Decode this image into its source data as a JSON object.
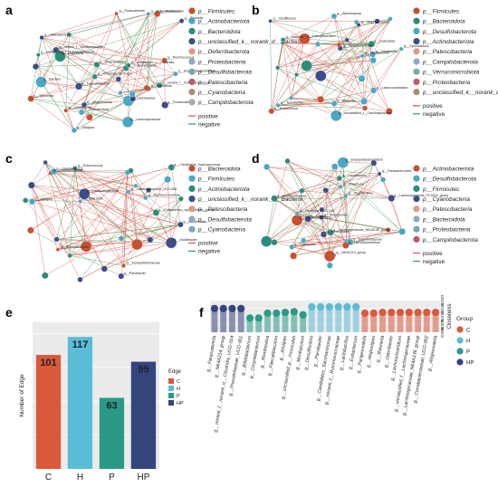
{
  "panels": {
    "a": {
      "letter": "a",
      "legend": [
        {
          "label": "p__Firmicutes",
          "color": "#c8502e"
        },
        {
          "label": "p__Actinobacteriota",
          "color": "#4aa8c4"
        },
        {
          "label": "p__Bacteroidota",
          "color": "#2a8c7c"
        },
        {
          "label": "p__unclassified_k__norank_d__Bacteria",
          "color": "#3b4e8a"
        },
        {
          "label": "p__Deferribacterota",
          "color": "#e09a80"
        },
        {
          "label": "p__Proteobacteria",
          "color": "#8fa8c8"
        },
        {
          "label": "p__Desulfobacterota",
          "color": "#7aa8b0"
        },
        {
          "label": "p__Patescibacteria",
          "color": "#c05a68"
        },
        {
          "label": "p__Cyanobacteria",
          "color": "#a89070"
        },
        {
          "label": "p__Campilobacterota",
          "color": "#aaaaaa"
        }
      ],
      "edges": [
        "positive",
        "negative"
      ],
      "nodes": [
        "g__Helicobacter",
        "g__Erysipelatoclostridium",
        "g__Corynebacterium",
        "g__Muribaculum",
        "g__Alloprevotella",
        "g__Colidextribacter",
        "g__Ruminococcus",
        "g__Desulfovibrio",
        "g__Alistipes",
        "g__Rikenella",
        "g__unclassified_o__Clostridia",
        "g__Lachnospiraceae",
        "g__Faecalibaculum",
        "g__Oscillibacter",
        "g__Lactobacillus",
        "g__Dubosiella",
        "g__Romboutsia",
        "g__Roseburia",
        "g__Tyzzerella",
        "g__Parasutterella",
        "g__Bacillus",
        "g__norank_f__Ruminococcaceae",
        "g__unclassified_f__Lachnospiraceae",
        "g__norank_f__Muribaculaceae",
        "g__Enterorhabdus",
        "g__Clostridia_UCG-014"
      ]
    },
    "b": {
      "letter": "b",
      "legend": [
        {
          "label": "p__Firmicutes",
          "color": "#c8502e"
        },
        {
          "label": "p__Bacteroidota",
          "color": "#2a8c7c"
        },
        {
          "label": "p__Desulfobacterota",
          "color": "#4aa8c4"
        },
        {
          "label": "p__Actinobacteriota",
          "color": "#3b4e8a"
        },
        {
          "label": "p__Patescibacteria",
          "color": "#e09a80"
        },
        {
          "label": "p__Campilobacterota",
          "color": "#8fa8c8"
        },
        {
          "label": "p__Verrucomicrobiota",
          "color": "#7aa8b0"
        },
        {
          "label": "p__Proteobacteria",
          "color": "#c05a68"
        },
        {
          "label": "p__unclassified_k__norank_d__Bacteria",
          "color": "#a89070"
        }
      ],
      "edges": [
        "positive",
        "negative"
      ],
      "nodes": [
        "g__Parabacteroides",
        "g__Alistipes",
        "g__Muribaculum",
        "g__Akkermansia",
        "g__Odoribacter",
        "g__Lachnoclostridium",
        "g__Dubosiella",
        "g__Sporosarcina",
        "g__Staphylococcus",
        "g__Turicibacter",
        "g__Bilophila",
        "g__Faecalibaculum",
        "g__Eubacterium",
        "g__Oscillibacter",
        "g__unclassified_f__Oscillospiraceae"
      ]
    },
    "c": {
      "letter": "c",
      "legend": [
        {
          "label": "p__Bacteroidota",
          "color": "#c8502e"
        },
        {
          "label": "p__Firmicutes",
          "color": "#4aa8c4"
        },
        {
          "label": "p__Actinobacteriota",
          "color": "#2a8c7c"
        },
        {
          "label": "p__unclassified_k__norank_d__Bacteria",
          "color": "#3b4e8a"
        },
        {
          "label": "p__Patescibacteria",
          "color": "#e09a80"
        },
        {
          "label": "p__Desulfobacterota",
          "color": "#8fa8c8"
        },
        {
          "label": "p__Cyanobacteria",
          "color": "#7aa8b0"
        }
      ],
      "edges": [
        "positive",
        "negative"
      ],
      "nodes": [
        "g__Bacteroides",
        "g__Enterococcus",
        "g__Erysipelotrichaceae",
        "g__Peptococcaceae",
        "g__Streptococcus",
        "g__Candidatus_Saccharimonas",
        "g__Lachnospiraceae_UCG-006",
        "g__Parvibacter",
        "g__Alistipes",
        "g__Bifidobacterium",
        "g__UBA1819",
        "g__Oscillibacter",
        "g__Ruminococcaceae",
        "g__Eubacterium_xylanophilum_group",
        "g__Lachnoclostridium"
      ]
    },
    "d": {
      "letter": "d",
      "legend": [
        {
          "label": "p__Actinobacteriota",
          "color": "#c8502e"
        },
        {
          "label": "p__Desulfobacterota",
          "color": "#4aa8c4"
        },
        {
          "label": "p__Firmicutes",
          "color": "#2a8c7c"
        },
        {
          "label": "p__Cyanobacteria",
          "color": "#3b4e8a"
        },
        {
          "label": "p__Patescibacteria",
          "color": "#e09a80"
        },
        {
          "label": "p__Bacteroidota",
          "color": "#8fa8c8"
        },
        {
          "label": "p__Proteobacteria",
          "color": "#7aa8b0"
        },
        {
          "label": "p__Campilobacterota",
          "color": "#c05a68"
        }
      ],
      "edges": [
        "positive",
        "negative"
      ],
      "nodes": [
        "g__Helicobacter",
        "g__NK4A214_group",
        "g__Roseburia",
        "g__Parabacteroides",
        "g__Lachnoclostridium",
        "g__Oscillospiraceae",
        "g__Lactobacillus",
        "g__Clostridia_UCG-014",
        "g__Monoglobus",
        "g__Blautia",
        "g__Dubosiella",
        "g__Erysipelatoclostridium",
        "g__Lachnospiraceae_NK4A136_group",
        "g__Eggerthellaceae",
        "g__Ruminococcaceae",
        "g__Desulfovibrio",
        "g__Lachnospiraceae_FCS020_group"
      ]
    }
  },
  "chart_data": [
    {
      "type": "bar",
      "panel": "e",
      "categories": [
        "C",
        "H",
        "P",
        "HP"
      ],
      "values": [
        101,
        117,
        63,
        95
      ],
      "ylabel": "Number of Edge",
      "ylim": [
        0,
        130
      ],
      "legend_title": "Edge",
      "legend": [
        "C",
        "H",
        "P",
        "HP"
      ],
      "colors": [
        "#d9593a",
        "#5bbcd8",
        "#2a9a87",
        "#34457e"
      ],
      "legend_placement": "right"
    },
    {
      "type": "scatter",
      "subtype": "lollipop",
      "panel": "f",
      "ylabel": "Closeness",
      "ytick_labels": [
        "0.000",
        "0.005",
        "0.010",
        "0.015",
        "0.020"
      ],
      "ylim": [
        0,
        0.02
      ],
      "legend_title": "Group",
      "legend": [
        "C",
        "H",
        "P",
        "HP"
      ],
      "colors": {
        "C": "#d9593a",
        "H": "#5bbcd8",
        "P": "#2a9a87",
        "HP": "#34457e"
      },
      "points": [
        {
          "taxon": "g__Parasutterella",
          "group": "HP",
          "value": 0.015
        },
        {
          "taxon": "g__NK4A214_group",
          "group": "HP",
          "value": 0.015
        },
        {
          "taxon": "g__norank_f__norank_o__Clostridia_UCG-014",
          "group": "HP",
          "value": 0.015
        },
        {
          "taxon": "g__Prevotellaceae_UCG-001",
          "group": "HP",
          "value": 0.015
        },
        {
          "taxon": "g__Bifidobacterium",
          "group": "P",
          "value": 0.009
        },
        {
          "taxon": "g__Corynebacterium",
          "group": "P",
          "value": 0.009
        },
        {
          "taxon": "g__Romboutsia",
          "group": "P",
          "value": 0.012
        },
        {
          "taxon": "g__Faecalibaculum",
          "group": "P",
          "value": 0.012
        },
        {
          "taxon": "g__Alistipes",
          "group": "P",
          "value": 0.0125
        },
        {
          "taxon": "g__unclassified_p__Firmicutes",
          "group": "P",
          "value": 0.013
        },
        {
          "taxon": "g__Muribaculum",
          "group": "P",
          "value": 0.011
        },
        {
          "taxon": "g__Desulfovibrio",
          "group": "H",
          "value": 0.016
        },
        {
          "taxon": "g__Parvibacter",
          "group": "H",
          "value": 0.016
        },
        {
          "taxon": "g__Candidatus_Saccharimonas",
          "group": "H",
          "value": 0.016
        },
        {
          "taxon": "g__norank_f__Ruminococcaceae",
          "group": "H",
          "value": 0.016
        },
        {
          "taxon": "g__Lactobacillus",
          "group": "H",
          "value": 0.016
        },
        {
          "taxon": "g__Eubacterium",
          "group": "H",
          "value": 0.016
        },
        {
          "taxon": "g__Paraprevotella",
          "group": "C",
          "value": 0.012
        },
        {
          "taxon": "g__Atopostipes",
          "group": "C",
          "value": 0.012
        },
        {
          "taxon": "g__Rikenella",
          "group": "C",
          "value": 0.0125
        },
        {
          "taxon": "g__Odoribacter",
          "group": "C",
          "value": 0.0125
        },
        {
          "taxon": "g__Lachnoclostridium",
          "group": "C",
          "value": 0.0125
        },
        {
          "taxon": "g__unclassified_f__Lachnospiraceae",
          "group": "C",
          "value": 0.0125
        },
        {
          "taxon": "g__Lachnospiraceae_NK4A136_group",
          "group": "C",
          "value": 0.0125
        },
        {
          "taxon": "g__Coriobacteriaceae_UCG-002",
          "group": "C",
          "value": 0.0125
        },
        {
          "taxon": "g__Alloprevotella",
          "group": "C",
          "value": 0.0125
        }
      ]
    }
  ],
  "legend_edge_labels": {
    "positive": "positive",
    "negative": "negative"
  }
}
